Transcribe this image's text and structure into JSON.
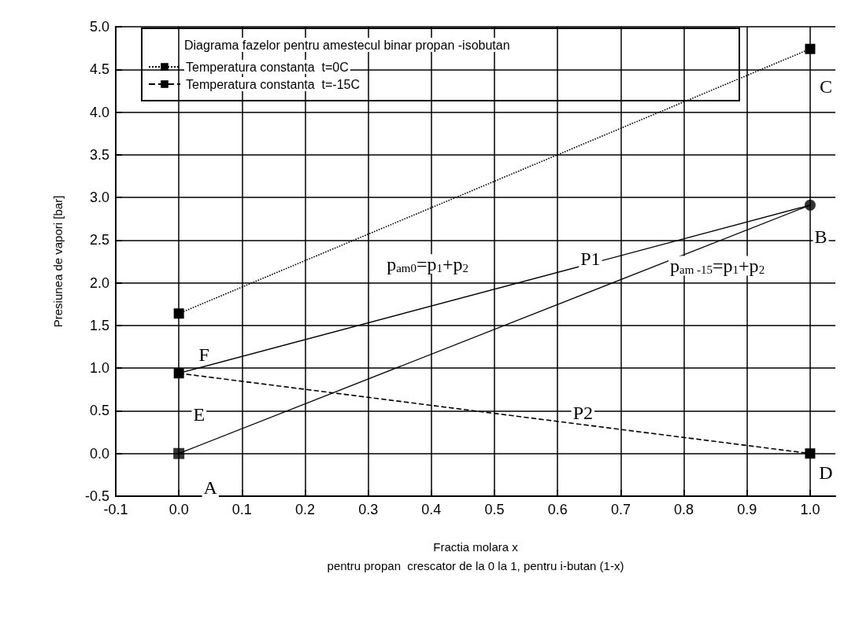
{
  "chart_data": {
    "type": "line",
    "xlabel": "Fractia molara x\npentru propan  crescator de la 0 la 1, pentru i-butan (1-x)",
    "ylabel": "Presiunea de vapori [bar]",
    "legend_title": "Diagrama fazelor pentru amestecul binar propan -isobutan",
    "legend": "top left",
    "grid": true,
    "xlim": [
      -0.1,
      1.04
    ],
    "xticks": [
      {
        "value": -0.1,
        "label": "-0.1"
      },
      {
        "value": 0,
        "label": "0.0"
      },
      {
        "value": 0.1,
        "label": "0.1"
      },
      {
        "value": 0.2,
        "label": "0.2"
      },
      {
        "value": 0.3,
        "label": "0.3"
      },
      {
        "value": 0.4,
        "label": "0.4"
      },
      {
        "value": 0.5,
        "label": "0.5"
      },
      {
        "value": 0.6,
        "label": "0.6"
      },
      {
        "value": 0.7,
        "label": "0.7"
      },
      {
        "value": 0.8,
        "label": "0.8"
      },
      {
        "value": 0.9,
        "label": "0.9"
      },
      {
        "value": 1,
        "label": "1.0"
      }
    ],
    "ylim": [
      -0.5,
      5
    ],
    "yticks": [
      {
        "value": -0.5,
        "label": "-0.5"
      },
      {
        "value": 0,
        "label": "0.0"
      },
      {
        "value": 0.5,
        "label": "0.5"
      },
      {
        "value": 1,
        "label": "1.0"
      },
      {
        "value": 1.5,
        "label": "1.5"
      },
      {
        "value": 2,
        "label": "2.0"
      },
      {
        "value": 2.5,
        "label": "2.5"
      },
      {
        "value": 3,
        "label": "3.0"
      },
      {
        "value": 3.5,
        "label": "3.5"
      },
      {
        "value": 4,
        "label": "4.0"
      },
      {
        "value": 4.5,
        "label": "4.5"
      },
      {
        "value": 5,
        "label": "5.0"
      }
    ],
    "x": [
      0,
      1
    ],
    "series": [
      {
        "name": "Temperatura constanta  t=0C",
        "color": "#000000",
        "values": [
          1.64,
          4.74
        ],
        "marker": "square",
        "line_style": "dotted"
      },
      {
        "name": "Temperatura constanta  t=-15C",
        "color": "#000000",
        "values": [
          0.94,
          0
        ],
        "marker": "square",
        "line_style": "dashed"
      },
      {
        "color": "#000000",
        "values": [
          0.94,
          2.91
        ],
        "marker": "none",
        "line_style": "solid"
      },
      {
        "color": "#000000",
        "values": [
          0,
          2.91
        ],
        "marker": "none",
        "line_style": "solid"
      },
      {
        "type": "scatter",
        "color": "#000000",
        "x": [
          0
        ],
        "values": [
          0
        ],
        "marker": "square"
      },
      {
        "type": "scatter",
        "color": "#000000",
        "x": [
          1
        ],
        "values": [
          2.91
        ],
        "marker": "circle"
      }
    ],
    "annotations": [
      "A",
      "E",
      "F",
      "B",
      "C",
      "D",
      "P1",
      "P2",
      "p$_{am0}$=p$_{1}$+p$_{2}$",
      "p$_{am -15}$=p$_{1}$+p$_{2}$"
    ]
  }
}
